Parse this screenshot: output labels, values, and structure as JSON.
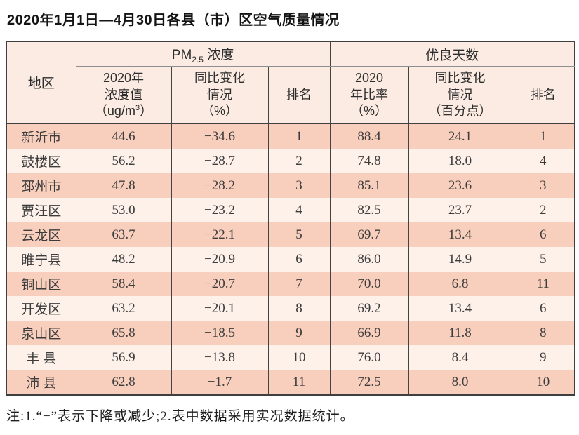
{
  "title": "2020年1月1日—4月30日各县（市）区空气质量情况",
  "footnote": "注:1.“−”表示下降或减少;2.表中数据采用实况数据统计。",
  "colors": {
    "row_odd": "#f8cebd",
    "row_even": "#fdf1ea",
    "header_bg": "#fcebe2",
    "border_dark": "#3f3f3f",
    "border_gray": "#8f8f8f",
    "text": "#3c3c3c"
  },
  "table": {
    "header": {
      "region": "地区",
      "pm_group": {
        "prefix": "PM",
        "sub": "2.5",
        "suffix": " 浓度"
      },
      "good_group": "优良天数",
      "pm_value": {
        "lines": "2020年\n浓度值",
        "unit_prefix": "（ug/m",
        "unit_sup": "3",
        "unit_suffix": "）"
      },
      "pm_change": "同比变化\n情况\n（%）",
      "pm_rank": "排名",
      "good_rate": "2020\n年比率\n（%）",
      "good_change": "同比变化\n情况\n（百分点）",
      "good_rank": "排名"
    }
  },
  "chart_data": {
    "type": "table",
    "title": "2020年1月1日—4月30日各县（市）区空气质量情况",
    "columns": [
      "地区",
      "PM2.5浓度 2020年浓度值（ug/m3）",
      "PM2.5浓度 同比变化情况（%）",
      "PM2.5浓度 排名",
      "优良天数 2020年比率（%）",
      "优良天数 同比变化情况（百分点）",
      "优良天数 排名"
    ],
    "rows": [
      [
        "新沂市",
        "44.6",
        "−34.6",
        "1",
        "88.4",
        "24.1",
        "1"
      ],
      [
        "鼓楼区",
        "56.2",
        "−28.7",
        "2",
        "74.8",
        "18.0",
        "4"
      ],
      [
        "邳州市",
        "47.8",
        "−28.2",
        "3",
        "85.1",
        "23.6",
        "3"
      ],
      [
        "贾汪区",
        "53.0",
        "−23.2",
        "4",
        "82.5",
        "23.7",
        "2"
      ],
      [
        "云龙区",
        "63.7",
        "−22.1",
        "5",
        "69.7",
        "13.4",
        "6"
      ],
      [
        "睢宁县",
        "48.2",
        "−20.9",
        "6",
        "86.0",
        "14.9",
        "5"
      ],
      [
        "铜山区",
        "58.4",
        "−20.7",
        "7",
        "70.0",
        "6.8",
        "11"
      ],
      [
        "开发区",
        "63.2",
        "−20.1",
        "8",
        "69.2",
        "13.4",
        "6"
      ],
      [
        "泉山区",
        "65.8",
        "−18.5",
        "9",
        "66.9",
        "11.8",
        "8"
      ],
      [
        "丰 县",
        "56.9",
        "−13.8",
        "10",
        "76.0",
        "8.4",
        "9"
      ],
      [
        "沛 县",
        "62.8",
        "−1.7",
        "11",
        "72.5",
        "8.0",
        "10"
      ]
    ]
  }
}
